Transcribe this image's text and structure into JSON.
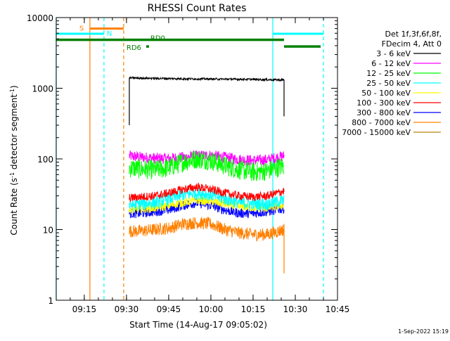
{
  "chart_data": {
    "type": "line",
    "title": "RHESSI Count Rates",
    "xlabel": "Start Time (14-Aug-17 09:05:02)",
    "ylabel_parts": [
      "Count Rate (s",
      "-1",
      " detector segment",
      "-1",
      ")"
    ],
    "ylog": true,
    "xlim_minutes": [
      "09:05:02",
      "10:45:00"
    ],
    "ylim": [
      1,
      10000
    ],
    "x_ticks": [
      "09:15",
      "09:30",
      "09:45",
      "10:00",
      "10:15",
      "10:30",
      "10:45"
    ],
    "y_ticks": [
      "1",
      "10",
      "100",
      "1000",
      "10000"
    ],
    "grid": false,
    "legend_position": "right",
    "legend_header": [
      "Det 1f,3f,6f,8f,",
      "FDecim 4, Att 0"
    ],
    "series": [
      {
        "name": "3 - 6 keV",
        "color": "#000000",
        "x": [
          "09:31",
          "09:35",
          "09:45",
          "09:55",
          "10:05",
          "10:15",
          "10:26"
        ],
        "values": [
          1400,
          1390,
          1370,
          1355,
          1345,
          1335,
          1310
        ]
      },
      {
        "name": "6 - 12 keV",
        "color": "#ff00ff",
        "x": [
          "09:31",
          "09:35",
          "09:40",
          "09:45",
          "09:50",
          "09:55",
          "10:00",
          "10:05",
          "10:10",
          "10:15",
          "10:20",
          "10:26"
        ],
        "values": [
          110,
          106,
          102,
          101,
          105,
          110,
          112,
          105,
          98,
          95,
          97,
          110
        ]
      },
      {
        "name": "12 - 25 keV",
        "color": "#00ff00",
        "x": [
          "09:31",
          "09:35",
          "09:40",
          "09:45",
          "09:50",
          "09:55",
          "10:00",
          "10:05",
          "10:10",
          "10:15",
          "10:20",
          "10:26"
        ],
        "values": [
          75,
          72,
          70,
          75,
          90,
          100,
          95,
          80,
          70,
          65,
          68,
          80
        ]
      },
      {
        "name": "25 - 50 keV",
        "color": "#00ffff",
        "x": [
          "09:31",
          "09:35",
          "09:40",
          "09:45",
          "09:50",
          "09:55",
          "10:00",
          "10:05",
          "10:10",
          "10:15",
          "10:20",
          "10:26"
        ],
        "values": [
          22,
          23,
          24,
          27,
          31,
          33,
          31,
          27,
          24,
          23,
          23,
          26
        ]
      },
      {
        "name": "50 - 100 keV",
        "color": "#ffff00",
        "x": [
          "09:31",
          "09:40",
          "09:50",
          "09:55",
          "10:00",
          "10:10",
          "10:20",
          "10:26"
        ],
        "values": [
          19,
          20,
          24,
          26,
          25,
          21,
          20,
          22
        ]
      },
      {
        "name": "100 - 300 keV",
        "color": "#ff0000",
        "x": [
          "09:31",
          "09:35",
          "09:40",
          "09:45",
          "09:50",
          "09:55",
          "10:00",
          "10:05",
          "10:10",
          "10:15",
          "10:20",
          "10:26"
        ],
        "values": [
          28,
          29,
          30,
          33,
          37,
          40,
          37,
          33,
          30,
          29,
          30,
          35
        ]
      },
      {
        "name": "300 - 800 keV",
        "color": "#0000ff",
        "x": [
          "09:31",
          "09:35",
          "09:40",
          "09:45",
          "09:50",
          "09:55",
          "10:00",
          "10:05",
          "10:10",
          "10:15",
          "10:20",
          "10:26"
        ],
        "values": [
          17,
          17,
          18,
          19,
          22,
          24,
          22,
          19,
          17,
          17,
          18,
          20
        ]
      },
      {
        "name": "800 - 7000 keV",
        "color": "#ff8000",
        "x": [
          "09:31",
          "09:35",
          "09:40",
          "09:45",
          "09:50",
          "09:55",
          "10:00",
          "10:05",
          "10:10",
          "10:15",
          "10:20",
          "10:26"
        ],
        "values": [
          9.5,
          9.5,
          10,
          10.5,
          12,
          12.5,
          12,
          10,
          9,
          8.5,
          8.5,
          10
        ]
      },
      {
        "name": "7000 - 15000 keV",
        "color": "#b8860b",
        "x": [],
        "values": []
      }
    ],
    "annotations": {
      "orange_band": {
        "label": "S",
        "color": "#ff8000",
        "x_range": [
          "09:17",
          "09:29"
        ],
        "y": 7000
      },
      "cyan_bands": [
        {
          "label": "N",
          "color": "#00ffff",
          "x_range": [
            "09:05",
            "09:22"
          ],
          "y": 5900
        },
        {
          "label": "",
          "color": "#00ffff",
          "x_range": [
            "10:22",
            "10:40"
          ],
          "y": 5900
        }
      ],
      "green_bands": [
        {
          "label": "",
          "color": "#008000",
          "x_range": [
            "09:05",
            "09:39"
          ],
          "y": 4850
        },
        {
          "label": "RD0",
          "color": "#008000",
          "x_range": [
            "09:39",
            "10:26"
          ],
          "y": 4850
        },
        {
          "label": "",
          "color": "#008000",
          "x_range": [
            "10:26",
            "10:39"
          ],
          "y": 3900
        }
      ],
      "green_small": {
        "label": "RD6",
        "color": "#008000",
        "x_range": [
          "09:37",
          "09:38"
        ],
        "y": 3900
      },
      "vlines": [
        {
          "x": "09:05",
          "color": "#00ffff",
          "style": "solid"
        },
        {
          "x": "09:17",
          "color": "#ff8000",
          "style": "solid"
        },
        {
          "x": "09:22",
          "color": "#00ffff",
          "style": "dashed"
        },
        {
          "x": "09:29",
          "color": "#ff8000",
          "style": "dashed"
        },
        {
          "x": "10:22",
          "color": "#00ffff",
          "style": "solid"
        },
        {
          "x": "10:40",
          "color": "#00ffff",
          "style": "dashed"
        }
      ]
    },
    "footer_date": "1-Sep-2022 15:19"
  }
}
